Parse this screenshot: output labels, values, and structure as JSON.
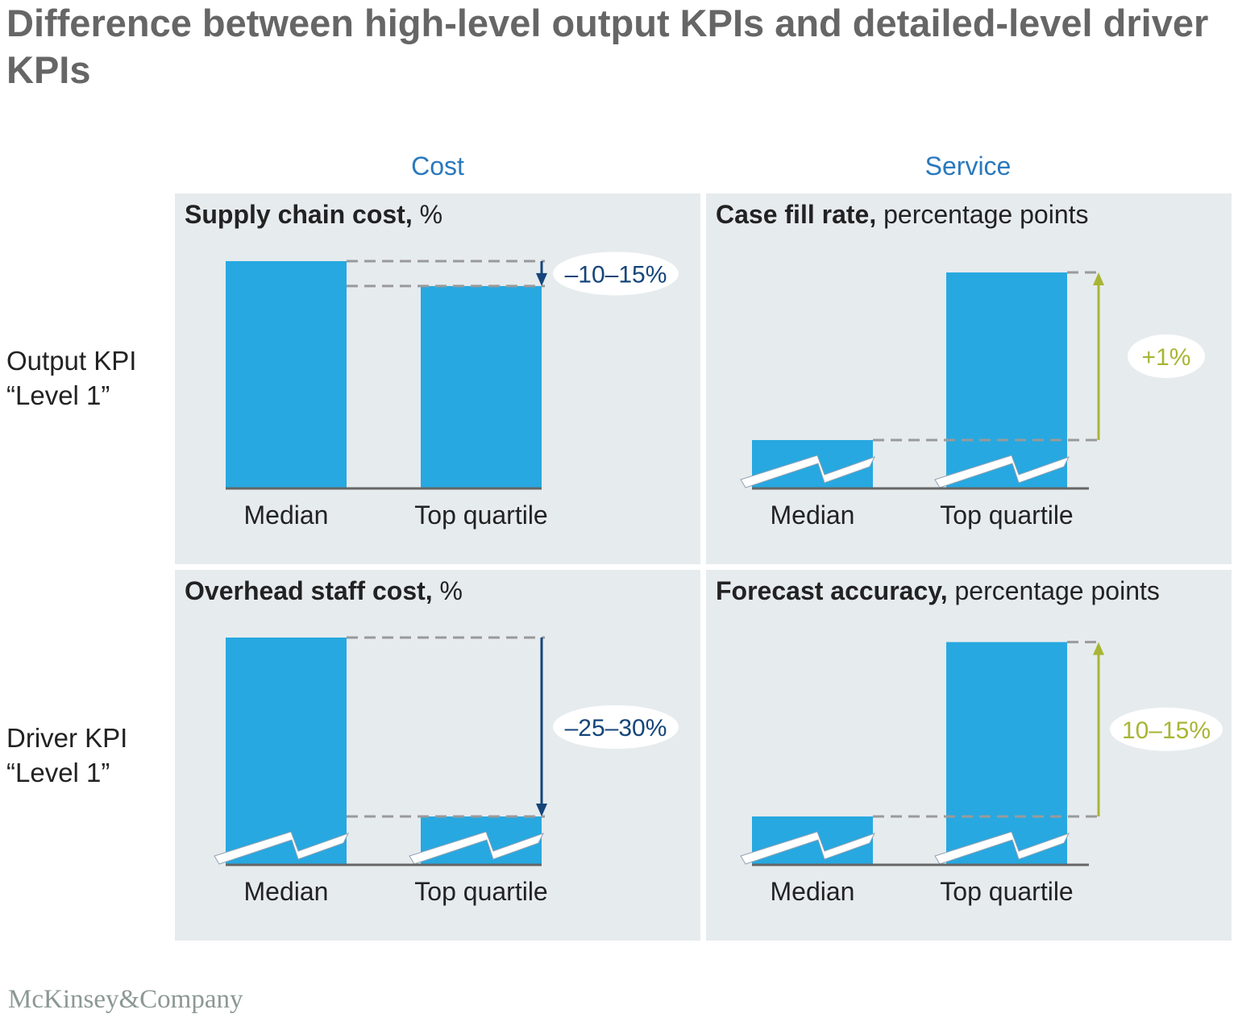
{
  "title": "Difference between high-level output KPIs and detailed-level driver KPIs",
  "columns": [
    "Cost",
    "Service"
  ],
  "rows": [
    {
      "line1": "Output KPI",
      "line2": "“Level 1”"
    },
    {
      "line1": "Driver KPI",
      "line2": "“Level 1”"
    }
  ],
  "footer": "McKinsey&Company",
  "colors": {
    "bar": "#27a8e0",
    "down_arrow": "#15457a",
    "up_arrow": "#a8b533",
    "dash": "#9a9a9a",
    "axis": "#666666"
  },
  "chart_data": [
    {
      "type": "bar",
      "title_bold": "Supply chain cost,",
      "title_rest": " %",
      "categories": [
        "Median",
        "Top quartile"
      ],
      "values": [
        100,
        89
      ],
      "axis_break": false,
      "ylim": [
        0,
        100
      ],
      "change_label": "–10–15%",
      "direction": "down"
    },
    {
      "type": "bar",
      "title_bold": "Case fill rate,",
      "title_rest": " percentage points",
      "categories": [
        "Median",
        "Top quartile"
      ],
      "values": [
        21,
        95
      ],
      "axis_break": true,
      "ylim": [
        0,
        100
      ],
      "change_label": "+1%",
      "direction": "up"
    },
    {
      "type": "bar",
      "title_bold": "Overhead staff cost,",
      "title_rest": " %",
      "categories": [
        "Median",
        "Top quartile"
      ],
      "values": [
        100,
        21
      ],
      "axis_break": true,
      "ylim": [
        0,
        100
      ],
      "change_label": "–25–30%",
      "direction": "down"
    },
    {
      "type": "bar",
      "title_bold": "Forecast accuracy,",
      "title_rest": " percentage points",
      "categories": [
        "Median",
        "Top quartile"
      ],
      "values": [
        21,
        98
      ],
      "axis_break": true,
      "ylim": [
        0,
        100
      ],
      "change_label": "10–15%",
      "direction": "up"
    }
  ]
}
